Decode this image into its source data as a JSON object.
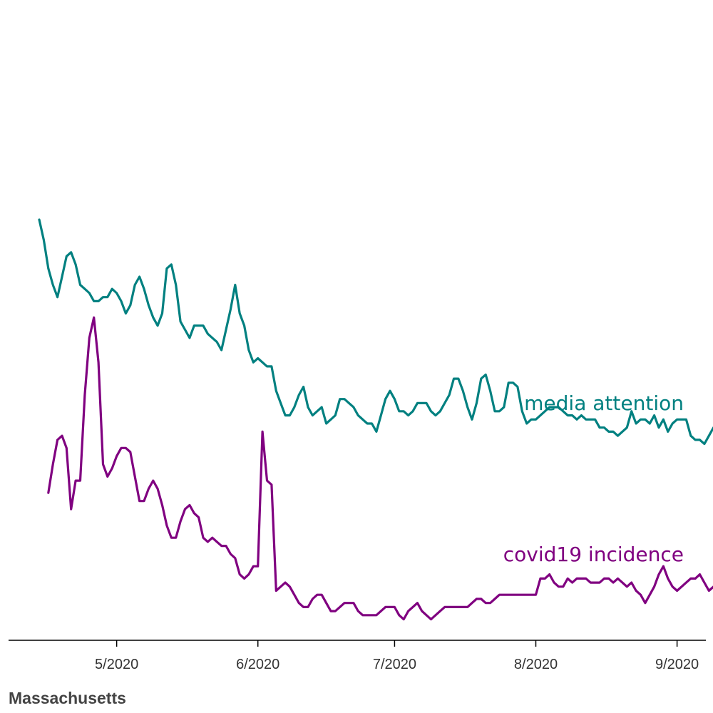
{
  "chart_data": {
    "type": "line",
    "title": "Massachusetts",
    "xlabel": "",
    "ylabel": "",
    "x_range": [
      "2020-04-14",
      "2020-09-04"
    ],
    "y_range": [
      0,
      100
    ],
    "y_axis_shown": false,
    "grid": false,
    "legend": "direct labels at right end of each line",
    "ticks": [
      "5/2020",
      "6/2020",
      "7/2020",
      "8/2020",
      "9/2020"
    ],
    "x_values_note": "day index starting 2020-04-14",
    "series": [
      {
        "name": "media attention",
        "color": "#008080",
        "start": "2020-04-14",
        "values": [
          100,
          95,
          88,
          84,
          81,
          86,
          91,
          92,
          89,
          84,
          83,
          82,
          80,
          80,
          81,
          81,
          83,
          82,
          80,
          77,
          79,
          84,
          86,
          83,
          79,
          76,
          74,
          77,
          88,
          89,
          84,
          75,
          73,
          71,
          74,
          74,
          74,
          72,
          71,
          70,
          68,
          73,
          78,
          84,
          77,
          74,
          68,
          65,
          66,
          65,
          64,
          64,
          58,
          55,
          52,
          52,
          54,
          57,
          59,
          54,
          52,
          53,
          54,
          50,
          51,
          52,
          56,
          56,
          55,
          54,
          52,
          51,
          50,
          50,
          48,
          52,
          56,
          58,
          56,
          53,
          53,
          52,
          53,
          55,
          55,
          55,
          53,
          52,
          53,
          55,
          57,
          61,
          61,
          58,
          54,
          51,
          55,
          61,
          62,
          58,
          53,
          53,
          54,
          60,
          60,
          59,
          53,
          50,
          51,
          51,
          52,
          53,
          54,
          54,
          54,
          53,
          52,
          52,
          51,
          52,
          51,
          51,
          51,
          49,
          49,
          48,
          48,
          47,
          48,
          49,
          53,
          50,
          51,
          51,
          50,
          52,
          49,
          51,
          48,
          50,
          51,
          51,
          51,
          47,
          46,
          46,
          45,
          47,
          49,
          50,
          50,
          48,
          48,
          46,
          43,
          46,
          49,
          48,
          47,
          44,
          43,
          43,
          47,
          49,
          49,
          48,
          47,
          47,
          47,
          48,
          46,
          46
        ]
      },
      {
        "name": "covid19 incidence",
        "color": "#800080",
        "start": "2020-04-16",
        "values": [
          33,
          40,
          46,
          47,
          44,
          29,
          36,
          36,
          57,
          71,
          76,
          65,
          40,
          37,
          39,
          42,
          44,
          44,
          43,
          37,
          31,
          31,
          34,
          36,
          34,
          30,
          25,
          22,
          22,
          26,
          29,
          30,
          28,
          27,
          22,
          21,
          22,
          21,
          20,
          20,
          18,
          17,
          13,
          12,
          13,
          15,
          15,
          48,
          36,
          35,
          9,
          10,
          11,
          10,
          8,
          6,
          5,
          5,
          7,
          8,
          8,
          6,
          4,
          4,
          5,
          6,
          6,
          6,
          4,
          3,
          3,
          3,
          3,
          4,
          5,
          5,
          5,
          3,
          2,
          4,
          5,
          6,
          4,
          3,
          2,
          3,
          4,
          5,
          5,
          5,
          5,
          5,
          5,
          6,
          7,
          7,
          6,
          6,
          7,
          8,
          8,
          8,
          8,
          8,
          8,
          8,
          8,
          8,
          12,
          12,
          13,
          11,
          10,
          10,
          12,
          11,
          12,
          12,
          12,
          11,
          11,
          11,
          12,
          12,
          11,
          12,
          11,
          10,
          11,
          9,
          8,
          6,
          8,
          10,
          13,
          15,
          12,
          10,
          9,
          10,
          11,
          12,
          12,
          13,
          11,
          9,
          10,
          11,
          11,
          12,
          8,
          7,
          10,
          12,
          13,
          11,
          10,
          10,
          9,
          8
        ]
      }
    ]
  }
}
